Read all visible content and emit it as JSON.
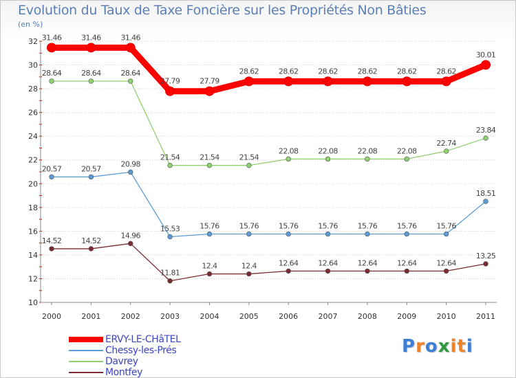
{
  "title": "Evolution du Taux de Taxe Foncière sur les Propriétés Non Bâties",
  "logo_text": "Proxiti",
  "logo_colors": [
    "#3e7fd6",
    "#f0822a",
    "#3e7fd6",
    "#2e9a3c",
    "#f0822a",
    "#f0822a",
    "#3e7fd6"
  ],
  "chart_data": {
    "type": "line",
    "title": "Evolution du Taux de Taxe Foncière sur les Propriétés Non Bâties",
    "ylabel": "(en %)",
    "xlabel": "",
    "x": [
      "2000",
      "2001",
      "2002",
      "2003",
      "2004",
      "2005",
      "2006",
      "2007",
      "2008",
      "2009",
      "2010",
      "2011"
    ],
    "ylim": [
      10,
      32
    ],
    "yticks": [
      "10",
      "12",
      "14",
      "16",
      "18",
      "20",
      "22",
      "24",
      "26",
      "28",
      "30",
      "32"
    ],
    "grid": "horizontal",
    "legend_position": "bottom-left",
    "series": [
      {
        "name": "ERVY-LE-CHâTEL",
        "color": "#ff0000",
        "values": [
          31.46,
          31.46,
          31.46,
          27.79,
          27.79,
          28.62,
          28.62,
          28.62,
          28.62,
          28.62,
          28.62,
          30.01
        ],
        "labels": [
          "31.46",
          "31.46",
          "31.46",
          "27.79",
          "27.79",
          "28.62",
          "28.62",
          "28.62",
          "28.62",
          "28.62",
          "28.62",
          "30.01"
        ]
      },
      {
        "name": "Chessy-les-Prés",
        "color": "#5b9bd5",
        "values": [
          20.57,
          20.57,
          20.98,
          15.53,
          15.76,
          15.76,
          15.76,
          15.76,
          15.76,
          15.76,
          15.76,
          18.51
        ],
        "labels": [
          "20.57",
          "20.57",
          "20.98",
          "15.53",
          "15.76",
          "15.76",
          "15.76",
          "15.76",
          "15.76",
          "15.76",
          "15.76",
          "18.51"
        ]
      },
      {
        "name": "Davrey",
        "color": "#8fd06f",
        "values": [
          28.64,
          28.64,
          28.64,
          21.54,
          21.54,
          21.54,
          22.08,
          22.08,
          22.08,
          22.08,
          22.74,
          23.84
        ],
        "labels": [
          "28.64",
          "28.64",
          "28.64",
          "21.54",
          "21.54",
          "21.54",
          "22.08",
          "22.08",
          "22.08",
          "22.08",
          "22.74",
          "23.84"
        ]
      },
      {
        "name": "Montfey",
        "color": "#7a2a30",
        "values": [
          14.52,
          14.52,
          14.96,
          11.81,
          12.4,
          12.4,
          12.64,
          12.64,
          12.64,
          12.64,
          12.64,
          13.25
        ],
        "labels": [
          "14.52",
          "14.52",
          "14.96",
          "11.81",
          "12.4",
          "12.4",
          "12.64",
          "12.64",
          "12.64",
          "12.64",
          "12.64",
          "13.25"
        ]
      }
    ]
  }
}
